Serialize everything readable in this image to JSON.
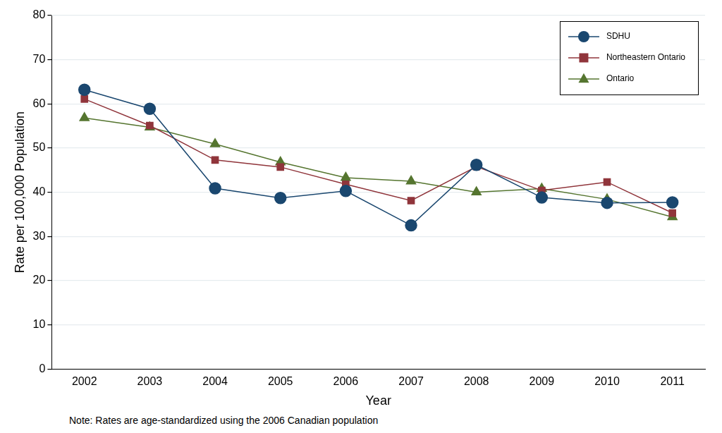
{
  "chart_data": {
    "type": "line",
    "x_label": "Year",
    "y_label": "Rate per 100,000 Population",
    "note": "Note: Rates are age-standardized using the 2006 Canadian population",
    "categories": [
      "2002",
      "2003",
      "2004",
      "2005",
      "2006",
      "2007",
      "2008",
      "2009",
      "2010",
      "2011"
    ],
    "series": [
      {
        "name": "SDHU",
        "color": "#1a476f",
        "marker": "circle",
        "values": [
          63.2,
          58.9,
          40.9,
          38.7,
          40.3,
          32.5,
          46.2,
          38.8,
          37.6,
          37.7
        ]
      },
      {
        "name": "Northeastern Ontario",
        "color": "#90353b",
        "marker": "square",
        "values": [
          61.1,
          55.1,
          47.3,
          45.7,
          41.8,
          38.1,
          45.8,
          40.4,
          42.3,
          35.3
        ]
      },
      {
        "name": "Ontario",
        "color": "#55752f",
        "marker": "triangle",
        "values": [
          56.8,
          54.7,
          50.9,
          46.8,
          43.3,
          42.5,
          40.0,
          40.8,
          38.4,
          34.4
        ]
      }
    ],
    "ylim": [
      0,
      80
    ],
    "yticks": [
      0,
      10,
      20,
      30,
      40,
      50,
      60,
      70,
      80
    ],
    "grid": true,
    "legend": "upper right"
  }
}
